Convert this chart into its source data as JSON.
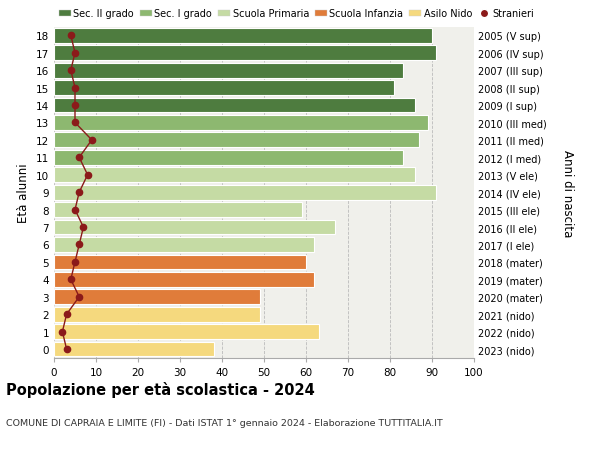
{
  "ages": [
    0,
    1,
    2,
    3,
    4,
    5,
    6,
    7,
    8,
    9,
    10,
    11,
    12,
    13,
    14,
    15,
    16,
    17,
    18
  ],
  "right_labels": [
    "2023 (nido)",
    "2022 (nido)",
    "2021 (nido)",
    "2020 (mater)",
    "2019 (mater)",
    "2018 (mater)",
    "2017 (I ele)",
    "2016 (II ele)",
    "2015 (III ele)",
    "2014 (IV ele)",
    "2013 (V ele)",
    "2012 (I med)",
    "2011 (II med)",
    "2010 (III med)",
    "2009 (I sup)",
    "2008 (II sup)",
    "2007 (III sup)",
    "2006 (IV sup)",
    "2005 (V sup)"
  ],
  "bar_values": [
    38,
    63,
    49,
    49,
    62,
    60,
    62,
    67,
    59,
    91,
    86,
    83,
    87,
    89,
    86,
    81,
    83,
    91,
    90
  ],
  "bar_colors": [
    "#f5d97e",
    "#f5d97e",
    "#f5d97e",
    "#e07c3a",
    "#e07c3a",
    "#e07c3a",
    "#c5dba4",
    "#c5dba4",
    "#c5dba4",
    "#c5dba4",
    "#c5dba4",
    "#8db870",
    "#8db870",
    "#8db870",
    "#4e7c3f",
    "#4e7c3f",
    "#4e7c3f",
    "#4e7c3f",
    "#4e7c3f"
  ],
  "stranieri_values": [
    3,
    2,
    3,
    6,
    4,
    5,
    6,
    7,
    5,
    6,
    8,
    6,
    9,
    5,
    5,
    5,
    4,
    5,
    4
  ],
  "stranieri_color": "#8b1a1a",
  "legend_labels": [
    "Sec. II grado",
    "Sec. I grado",
    "Scuola Primaria",
    "Scuola Infanzia",
    "Asilo Nido",
    "Stranieri"
  ],
  "legend_colors": [
    "#4e7c3f",
    "#8db870",
    "#c5dba4",
    "#e07c3a",
    "#f5d97e",
    "#8b1a1a"
  ],
  "ylabel_left": "Età alunni",
  "ylabel_right": "Anni di nascita",
  "title": "Popolazione per età scolastica - 2024",
  "subtitle": "COMUNE DI CAPRAIA E LIMITE (FI) - Dati ISTAT 1° gennaio 2024 - Elaborazione TUTTITALIA.IT",
  "xlim": [
    0,
    100
  ],
  "bg_color": "#ffffff",
  "plot_bg_color": "#f0f0eb",
  "grid_color": "#bbbbbb",
  "bar_edgecolor": "#ffffff"
}
